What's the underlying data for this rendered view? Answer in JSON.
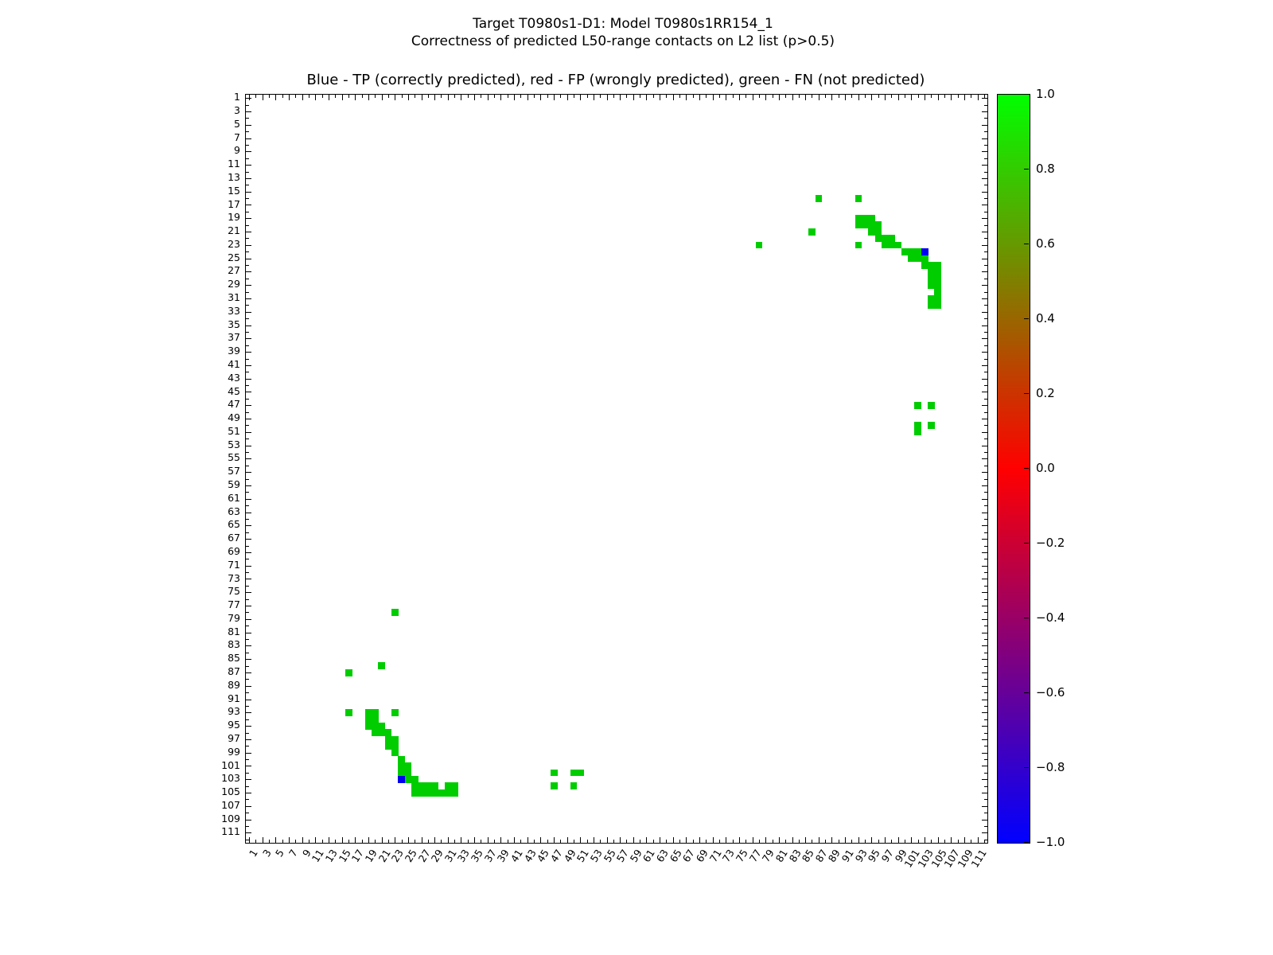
{
  "figure": {
    "title_line1": "Target T0980s1-D1: Model T0980s1RR154_1",
    "title_line2": "Correctness of predicted L50-range contacts on L2 list (p>0.5)",
    "axes_title": "Blue - TP (correctly predicted), red - FP (wrongly predicted), green - FN (not predicted)"
  },
  "axes": {
    "x_tick_labels": [
      1,
      3,
      5,
      7,
      9,
      11,
      13,
      15,
      17,
      19,
      21,
      23,
      25,
      27,
      29,
      31,
      33,
      35,
      37,
      39,
      41,
      43,
      45,
      47,
      49,
      51,
      53,
      55,
      57,
      59,
      61,
      63,
      65,
      67,
      69,
      71,
      73,
      75,
      77,
      79,
      81,
      83,
      85,
      87,
      89,
      91,
      93,
      95,
      97,
      99,
      101,
      103,
      105,
      107,
      109,
      111
    ],
    "y_tick_labels": [
      1,
      3,
      5,
      7,
      9,
      11,
      13,
      15,
      17,
      19,
      21,
      23,
      25,
      27,
      29,
      31,
      33,
      35,
      37,
      39,
      41,
      43,
      45,
      47,
      49,
      51,
      53,
      55,
      57,
      59,
      61,
      63,
      65,
      67,
      69,
      71,
      73,
      75,
      77,
      79,
      81,
      83,
      85,
      87,
      89,
      91,
      93,
      95,
      97,
      99,
      101,
      103,
      105,
      107,
      109,
      111
    ]
  },
  "chart_data": {
    "type": "heatmap",
    "title": "Blue - TP (correctly predicted), red - FP (wrongly predicted), green - FN (not predicted)",
    "grid_size": 112,
    "x_range": [
      0.5,
      112.5
    ],
    "y_range": [
      0.5,
      112.5
    ],
    "y_inverted": true,
    "symmetric": true,
    "legend": {
      "TP": "correctly predicted",
      "FP": "wrongly predicted",
      "FN": "not predicted"
    },
    "colors": {
      "FN": "#00cd00",
      "FP": "#ee0000",
      "TP": "#0000ee"
    },
    "contacts": {
      "FN": [
        [
          16,
          87
        ],
        [
          16,
          93
        ],
        [
          19,
          93
        ],
        [
          19,
          94
        ],
        [
          19,
          95
        ],
        [
          20,
          93
        ],
        [
          20,
          94
        ],
        [
          20,
          95
        ],
        [
          20,
          96
        ],
        [
          21,
          86
        ],
        [
          21,
          95
        ],
        [
          21,
          96
        ],
        [
          22,
          96
        ],
        [
          22,
          97
        ],
        [
          22,
          98
        ],
        [
          23,
          78
        ],
        [
          23,
          93
        ],
        [
          23,
          97
        ],
        [
          23,
          98
        ],
        [
          23,
          99
        ],
        [
          24,
          100
        ],
        [
          24,
          101
        ],
        [
          24,
          102
        ],
        [
          25,
          101
        ],
        [
          25,
          102
        ],
        [
          25,
          103
        ],
        [
          26,
          103
        ],
        [
          26,
          104
        ],
        [
          26,
          105
        ],
        [
          27,
          104
        ],
        [
          27,
          105
        ],
        [
          28,
          104
        ],
        [
          28,
          105
        ],
        [
          29,
          104
        ],
        [
          29,
          105
        ],
        [
          30,
          105
        ],
        [
          31,
          104
        ],
        [
          31,
          105
        ],
        [
          32,
          104
        ],
        [
          32,
          105
        ],
        [
          47,
          102
        ],
        [
          47,
          104
        ],
        [
          50,
          102
        ],
        [
          50,
          104
        ],
        [
          51,
          102
        ]
      ],
      "FP": [],
      "TP": [
        [
          24,
          103
        ]
      ]
    },
    "colorbar": {
      "min": -1.0,
      "max": 1.0,
      "gradient": [
        "#00ff00",
        "#ff0000",
        "#0000ff"
      ],
      "ticks": [
        {
          "label": "1.0",
          "value": 1.0
        },
        {
          "label": "0.8",
          "value": 0.8
        },
        {
          "label": "0.6",
          "value": 0.6
        },
        {
          "label": "0.4",
          "value": 0.4
        },
        {
          "label": "0.2",
          "value": 0.2
        },
        {
          "label": "0.0",
          "value": 0.0
        },
        {
          "label": "−0.2",
          "value": -0.2
        },
        {
          "label": "−0.4",
          "value": -0.4
        },
        {
          "label": "−0.6",
          "value": -0.6
        },
        {
          "label": "−0.8",
          "value": -0.8
        },
        {
          "label": "−1.0",
          "value": -1.0
        }
      ]
    }
  }
}
